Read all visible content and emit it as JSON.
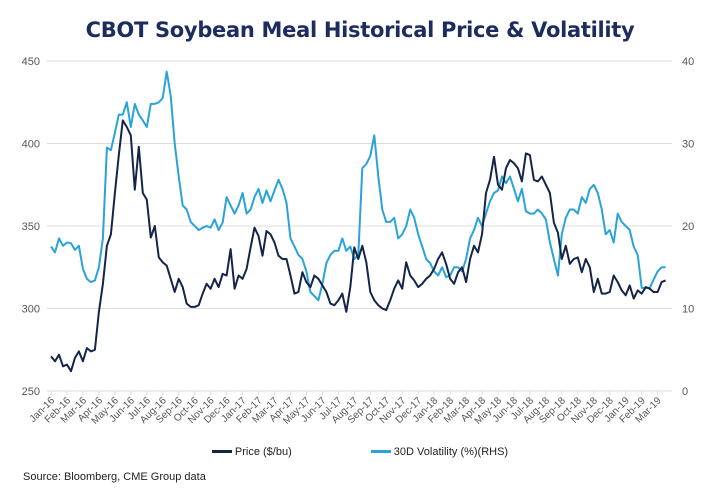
{
  "chart_data": {
    "type": "line",
    "title": "CBOT Soybean Meal Historical Price & Volatility",
    "source": "Source:  Bloomberg, CME Group data",
    "x_tick_labels": [
      "Jan-16",
      "Feb-16",
      "Mar-16",
      "Apr-16",
      "May-16",
      "Jun-16",
      "Jul-16",
      "Aug-16",
      "Sep-16",
      "Oct-16",
      "Nov-16",
      "Dec-16",
      "Jan-17",
      "Feb-17",
      "Mar-17",
      "Apr-17",
      "May-17",
      "Jun-17",
      "Jul-17",
      "Aug-17",
      "Sep-17",
      "Oct-17",
      "Nov-17",
      "Dec-17",
      "Jan-18",
      "Feb-18",
      "Mar-18",
      "Apr-18",
      "May-18",
      "Jun-18",
      "Jul-18",
      "Aug-18",
      "Sep-18",
      "Oct-18",
      "Nov-18",
      "Dec-18",
      "Jan-19",
      "Feb-19",
      "Mar-19"
    ],
    "y_left": {
      "label": "Price ($/bu)",
      "ticks": [
        250,
        300,
        350,
        400,
        450
      ],
      "range": [
        250,
        450
      ]
    },
    "y_right": {
      "label": "30D Volatility (%)(RHS)",
      "ticks": [
        0,
        10,
        20,
        30,
        40
      ],
      "range": [
        0,
        40
      ]
    },
    "grid": true,
    "legend_position": "bottom",
    "series": [
      {
        "name": "Price ($/bu)",
        "axis": "left",
        "color": "#14254a",
        "x_months": [
          0,
          0.25,
          0.5,
          0.75,
          1,
          1.25,
          1.5,
          1.75,
          2,
          2.25,
          2.5,
          2.75,
          3,
          3.25,
          3.5,
          3.75,
          4,
          4.25,
          4.5,
          4.75,
          5,
          5.25,
          5.5,
          5.75,
          6,
          6.25,
          6.5,
          6.75,
          7,
          7.25,
          7.5,
          7.75,
          8,
          8.25,
          8.5,
          8.75,
          9,
          9.25,
          9.5,
          9.75,
          10,
          10.25,
          10.5,
          10.75,
          11,
          11.25,
          11.5,
          11.75,
          12,
          12.25,
          12.5,
          12.75,
          13,
          13.25,
          13.5,
          13.75,
          14,
          14.25,
          14.5,
          14.75,
          15,
          15.25,
          15.5,
          15.75,
          16,
          16.25,
          16.5,
          16.75,
          17,
          17.25,
          17.5,
          17.75,
          18,
          18.25,
          18.5,
          18.75,
          19,
          19.25,
          19.5,
          19.75,
          20,
          20.25,
          20.5,
          20.75,
          21,
          21.25,
          21.5,
          21.75,
          22,
          22.25,
          22.5,
          22.75,
          23,
          23.25,
          23.5,
          23.75,
          24,
          24.25,
          24.5,
          24.75,
          25,
          25.25,
          25.5,
          25.75,
          26,
          26.25,
          26.5,
          26.75,
          27,
          27.25,
          27.5,
          27.75,
          28,
          28.25,
          28.5,
          28.75,
          29,
          29.25,
          29.5,
          29.75,
          30,
          30.25,
          30.5,
          30.75,
          31,
          31.25,
          31.5,
          31.75,
          32,
          32.25,
          32.5,
          32.75,
          33,
          33.25,
          33.5,
          33.75,
          34,
          34.25,
          34.5,
          34.75,
          35,
          35.25,
          35.5,
          35.75,
          36,
          36.25,
          36.5,
          36.75,
          37,
          37.25,
          37.5,
          37.75,
          38,
          38.25,
          38.5
        ],
        "values": [
          271,
          268,
          272,
          265,
          266,
          262,
          270,
          274,
          268,
          276,
          274,
          275,
          298,
          315,
          338,
          345,
          370,
          393,
          414,
          410,
          405,
          372,
          398,
          370,
          366,
          343,
          350,
          331,
          328,
          326,
          318,
          310,
          318,
          313,
          303,
          301,
          301,
          302,
          309,
          315,
          312,
          318,
          313,
          321,
          320,
          336,
          312,
          320,
          318,
          324,
          337,
          349,
          344,
          332,
          347,
          345,
          340,
          332,
          330,
          330,
          320,
          309,
          310,
          322,
          316,
          313,
          320,
          318,
          314,
          310,
          303,
          302,
          305,
          309,
          298,
          313,
          337,
          330,
          338,
          328,
          310,
          305,
          302,
          300,
          299,
          305,
          312,
          317,
          312,
          328,
          320,
          317,
          313,
          315,
          318,
          320,
          324,
          330,
          334,
          327,
          318,
          315,
          322,
          325,
          316,
          330,
          338,
          334,
          345,
          370,
          378,
          392,
          375,
          372,
          385,
          390,
          388,
          385,
          377,
          394,
          393,
          378,
          377,
          380,
          375,
          370,
          352,
          346,
          330,
          338,
          327,
          330,
          331,
          322,
          330,
          325,
          310,
          318,
          309,
          309,
          310,
          320,
          316,
          311,
          308,
          314,
          306,
          311,
          309,
          313,
          312,
          310,
          310,
          316,
          317,
          316,
          315,
          316,
          313,
          314,
          312,
          312,
          310,
          308,
          304,
          315,
          316,
          308
        ]
      },
      {
        "name": "30D Volatility (%)(RHS)",
        "axis": "right",
        "color": "#2aa3d8",
        "x_months": [
          0,
          0.25,
          0.5,
          0.75,
          1,
          1.25,
          1.5,
          1.75,
          2,
          2.25,
          2.5,
          2.75,
          3,
          3.25,
          3.5,
          3.75,
          4,
          4.25,
          4.5,
          4.75,
          5,
          5.25,
          5.5,
          5.75,
          6,
          6.25,
          6.5,
          6.75,
          7,
          7.25,
          7.5,
          7.75,
          8,
          8.25,
          8.5,
          8.75,
          9,
          9.25,
          9.5,
          9.75,
          10,
          10.25,
          10.5,
          10.75,
          11,
          11.25,
          11.5,
          11.75,
          12,
          12.25,
          12.5,
          12.75,
          13,
          13.25,
          13.5,
          13.75,
          14,
          14.25,
          14.5,
          14.75,
          15,
          15.25,
          15.5,
          15.75,
          16,
          16.25,
          16.5,
          16.75,
          17,
          17.25,
          17.5,
          17.75,
          18,
          18.25,
          18.5,
          18.75,
          19,
          19.25,
          19.5,
          19.75,
          20,
          20.25,
          20.5,
          20.75,
          21,
          21.25,
          21.5,
          21.75,
          22,
          22.25,
          22.5,
          22.75,
          23,
          23.25,
          23.5,
          23.75,
          24,
          24.25,
          24.5,
          24.75,
          25,
          25.25,
          25.5,
          25.75,
          26,
          26.25,
          26.5,
          26.75,
          27,
          27.25,
          27.5,
          27.75,
          28,
          28.25,
          28.5,
          28.75,
          29,
          29.25,
          29.5,
          29.75,
          30,
          30.25,
          30.5,
          30.75,
          31,
          31.25,
          31.5,
          31.75,
          32,
          32.25,
          32.5,
          32.75,
          33,
          33.25,
          33.5,
          33.75,
          34,
          34.25,
          34.5,
          34.75,
          35,
          35.25,
          35.5,
          35.75,
          36,
          36.25,
          36.5,
          36.75,
          37,
          37.25,
          37.5,
          37.75,
          38,
          38.25,
          38.5
        ],
        "values": [
          17.5,
          16.8,
          18.5,
          17.6,
          18,
          17.9,
          17.1,
          17.6,
          14.8,
          13.6,
          13.2,
          13.4,
          15,
          18.5,
          29.5,
          29.2,
          31.3,
          33.5,
          33.5,
          35,
          32,
          34.8,
          33.5,
          32.8,
          32,
          34.8,
          34.8,
          35,
          35.5,
          38.7,
          35.8,
          30,
          26,
          22.5,
          22,
          20.5,
          20,
          19.5,
          19.8,
          20,
          19.8,
          20.8,
          19.5,
          20.4,
          23.5,
          22.5,
          21.5,
          22.5,
          24,
          21.5,
          22,
          23.5,
          24.5,
          22.8,
          24.3,
          23,
          24.3,
          25.6,
          24.5,
          22.8,
          18.5,
          17.5,
          16.5,
          16,
          14.5,
          12,
          11.5,
          11,
          13,
          15.5,
          16.5,
          17,
          17,
          18.5,
          17,
          17.5,
          16,
          16.5,
          27,
          27.5,
          28.5,
          31,
          26,
          22,
          20.5,
          20.5,
          21,
          18.5,
          19,
          20,
          22,
          21,
          19,
          17.5,
          16,
          15.5,
          14.5,
          14,
          15,
          13.8,
          14,
          15,
          15,
          14.5,
          16,
          18.5,
          19.5,
          21,
          20,
          21.5,
          23,
          24,
          24.3,
          26,
          25.2,
          26,
          24.5,
          23,
          24.5,
          21.8,
          21.5,
          21.5,
          22,
          21.5,
          20.8,
          18,
          16,
          14,
          19,
          21,
          22,
          22,
          21.5,
          23.5,
          22.8,
          24.5,
          25,
          24,
          22,
          19,
          19.5,
          18,
          21.5,
          20.5,
          20,
          19.5,
          17.5,
          16.5,
          12.5,
          12.5,
          12.5,
          13.5,
          14.5,
          15,
          15,
          14.5,
          13.5,
          14.5,
          13,
          12,
          12.5,
          12.5,
          12,
          11,
          10.5,
          11.5,
          12.5,
          13
        ]
      }
    ]
  }
}
